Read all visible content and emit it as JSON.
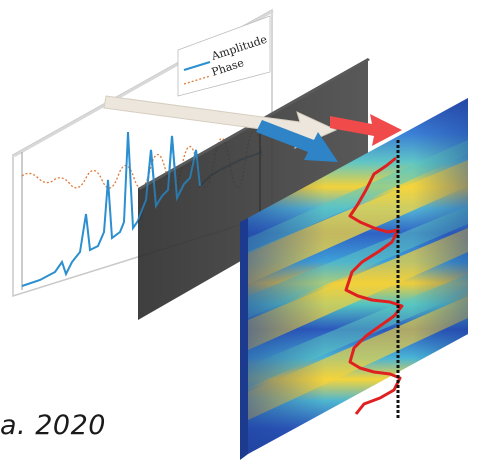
{
  "legend": {
    "amplitude_label": "Amplitude",
    "phase_label": "Phase"
  },
  "caption": "a. 2020",
  "colors": {
    "amplitude": "#2b8fd0",
    "phase": "#e07a3a",
    "dark_panel": "#3a3a3a",
    "arrow_white": "#ece6dc",
    "arrow_blue": "#2e84c7",
    "arrow_red": "#f04a4a",
    "heat_trace": "#e02020",
    "center_line": "#111111"
  },
  "icons": [
    "plot-panel",
    "dark-panel",
    "heatmap-panel",
    "arrow"
  ]
}
